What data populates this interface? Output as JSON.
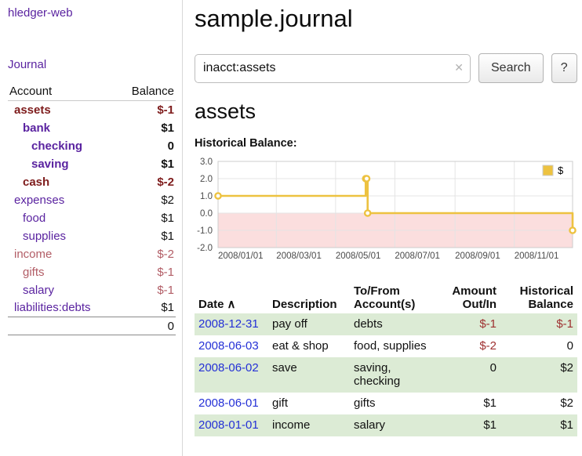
{
  "app": {
    "title": "hledger-web",
    "nav_journal": "Journal"
  },
  "colors": {
    "link_purple": "#5a23a0",
    "link_blue": "#2430d6",
    "negative_strong": "#7e1c1c",
    "negative_soft": "#b25d66",
    "row_green": "#dcebd5",
    "chart_line": "#edc240"
  },
  "sidebar": {
    "header": {
      "account": "Account",
      "balance": "Balance"
    },
    "accounts": [
      {
        "name": "assets",
        "level": 0,
        "bold": true,
        "name_tone": "negative-strong",
        "balance": "$-1",
        "balance_tone": "negative-strong"
      },
      {
        "name": "bank",
        "level": 1,
        "bold": true,
        "name_tone": "link",
        "balance": "$1",
        "balance_tone": "normal"
      },
      {
        "name": "checking",
        "level": 2,
        "bold": true,
        "name_tone": "link",
        "balance": "0",
        "balance_tone": "normal"
      },
      {
        "name": "saving",
        "level": 2,
        "bold": true,
        "name_tone": "link",
        "balance": "$1",
        "balance_tone": "normal"
      },
      {
        "name": "cash",
        "level": 1,
        "bold": true,
        "name_tone": "negative-strong",
        "balance": "$-2",
        "balance_tone": "negative-strong"
      },
      {
        "name": "expenses",
        "level": 0,
        "bold": false,
        "name_tone": "link",
        "balance": "$2",
        "balance_tone": "normal"
      },
      {
        "name": "food",
        "level": 1,
        "bold": false,
        "name_tone": "link",
        "balance": "$1",
        "balance_tone": "normal"
      },
      {
        "name": "supplies",
        "level": 1,
        "bold": false,
        "name_tone": "link",
        "balance": "$1",
        "balance_tone": "normal"
      },
      {
        "name": "income",
        "level": 0,
        "bold": false,
        "name_tone": "negative-soft",
        "balance": "$-2",
        "balance_tone": "negative-soft"
      },
      {
        "name": "gifts",
        "level": 1,
        "bold": false,
        "name_tone": "negative-soft",
        "balance": "$-1",
        "balance_tone": "negative-soft"
      },
      {
        "name": "salary",
        "level": 1,
        "bold": false,
        "name_tone": "link",
        "balance": "$-1",
        "balance_tone": "negative-soft"
      },
      {
        "name": "liabilities:debts",
        "level": 0,
        "bold": false,
        "name_tone": "link",
        "balance": "$1",
        "balance_tone": "normal"
      }
    ],
    "total": "0"
  },
  "main": {
    "title": "sample.journal",
    "search": {
      "value": "inacct:assets",
      "clear_icon": "✕",
      "button_label": "Search",
      "help_label": "?"
    },
    "section_title": "assets",
    "chart_heading": "Historical Balance:"
  },
  "chart_data": {
    "type": "line",
    "step": true,
    "title": "Historical Balance",
    "series": [
      {
        "name": "$",
        "points": [
          [
            "2008-01-01",
            1
          ],
          [
            "2008-06-01",
            2
          ],
          [
            "2008-06-02",
            2
          ],
          [
            "2008-06-03",
            0
          ],
          [
            "2008-12-31",
            -1
          ]
        ]
      }
    ],
    "xlim": [
      "2008-01-01",
      "2008-12-31"
    ],
    "ylim": [
      -2,
      3
    ],
    "x_ticks": [
      "2008/01/01",
      "2008/03/01",
      "2008/05/01",
      "2008/07/01",
      "2008/09/01",
      "2008/11/01"
    ],
    "y_ticks": [
      3,
      2,
      1,
      0,
      -1,
      -2
    ],
    "legend": [
      "$"
    ],
    "legend_position": "top-right",
    "grid": true,
    "style": {
      "line": "#edc240",
      "marker_fill": "#ffffff",
      "negative_region": "#fbdede",
      "grid": "#e4e4e4",
      "border": "#cccccc",
      "legend_border": "#cccccc"
    }
  },
  "register": {
    "columns": {
      "date_label": "Date",
      "sort_icon": "∧",
      "description": "Description",
      "tofrom": [
        "To/From",
        "Account(s)"
      ],
      "amount": [
        "Amount",
        "Out/In"
      ],
      "balance": [
        "Historical",
        "Balance"
      ]
    },
    "rows": [
      {
        "date": "2008-12-31",
        "description": "pay off",
        "accounts": "debts",
        "amount": "$-1",
        "amount_tone": "negative",
        "balance": "$-1",
        "balance_tone": "negative"
      },
      {
        "date": "2008-06-03",
        "description": "eat & shop",
        "accounts": "food, supplies",
        "amount": "$-2",
        "amount_tone": "negative",
        "balance": "0",
        "balance_tone": "normal"
      },
      {
        "date": "2008-06-02",
        "description": "save",
        "accounts": "saving, checking",
        "amount": "0",
        "amount_tone": "normal",
        "balance": "$2",
        "balance_tone": "normal"
      },
      {
        "date": "2008-06-01",
        "description": "gift",
        "accounts": "gifts",
        "amount": "$1",
        "amount_tone": "normal",
        "balance": "$2",
        "balance_tone": "normal"
      },
      {
        "date": "2008-01-01",
        "description": "income",
        "accounts": "salary",
        "amount": "$1",
        "amount_tone": "normal",
        "balance": "$1",
        "balance_tone": "normal"
      }
    ]
  }
}
